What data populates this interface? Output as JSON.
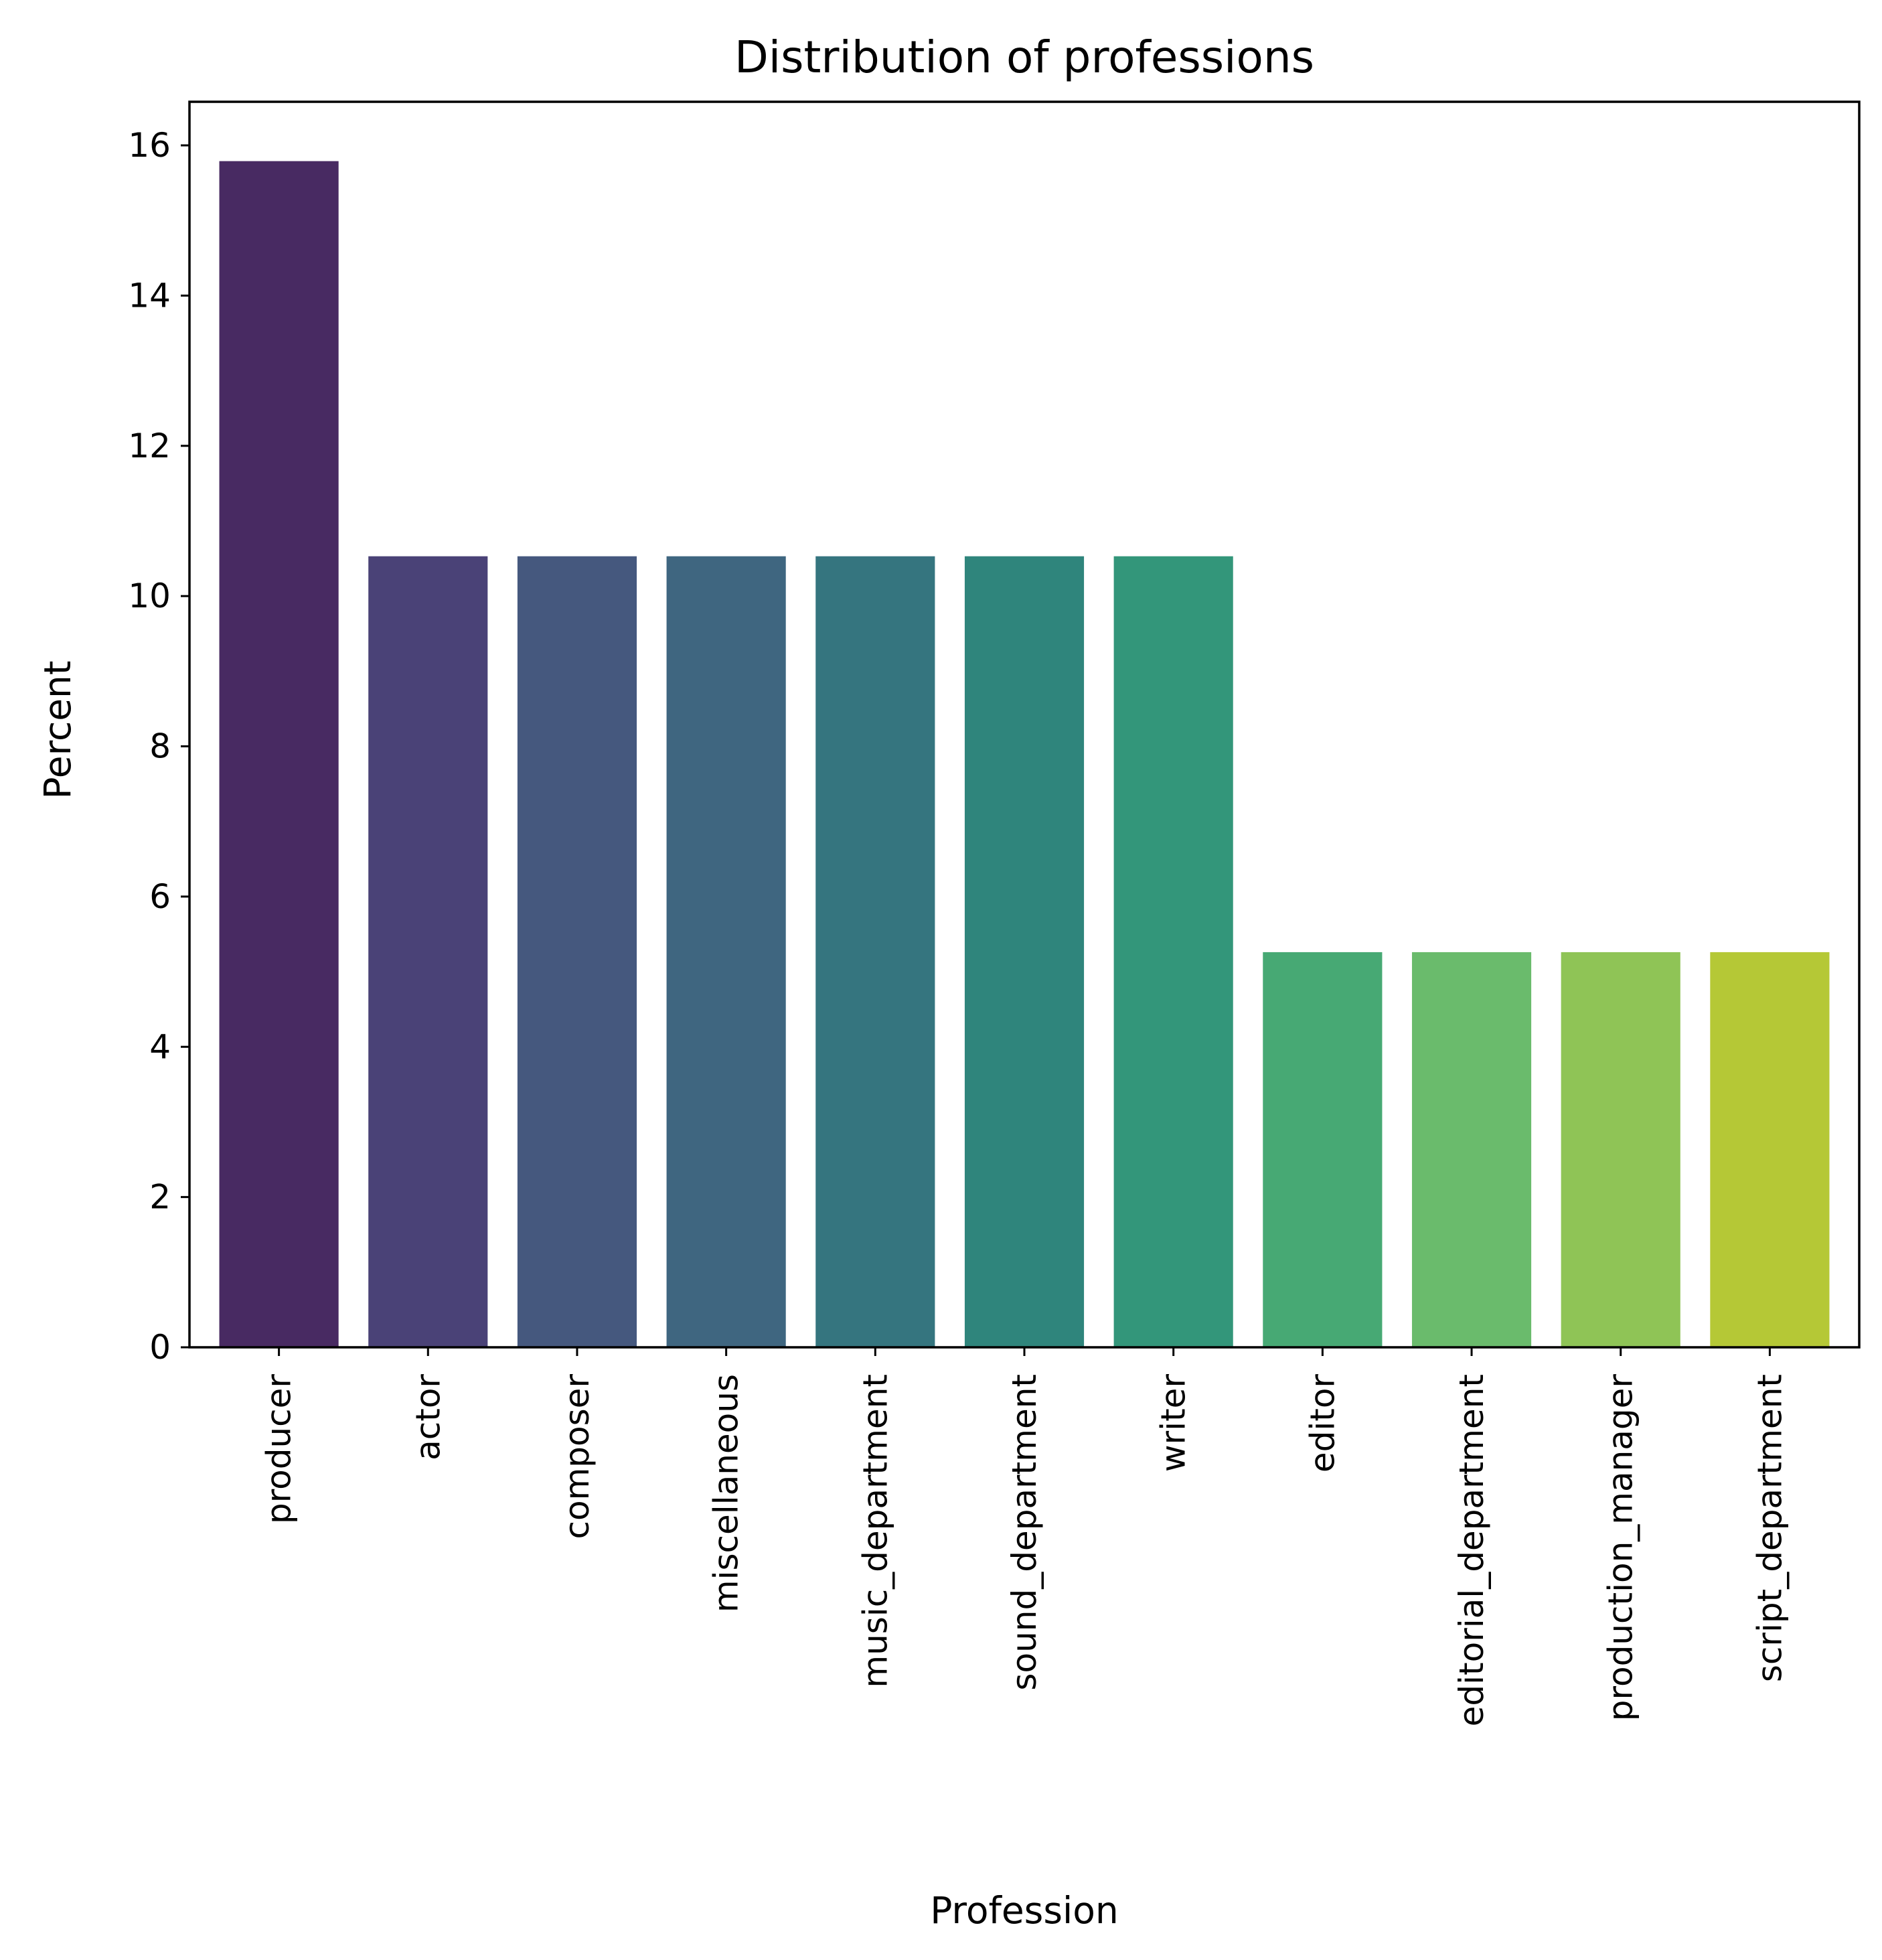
{
  "chart_data": {
    "type": "bar",
    "title": "Distribution of professions",
    "xlabel": "Profession",
    "ylabel": "Percent",
    "categories": [
      "producer",
      "actor",
      "composer",
      "miscellaneous",
      "music_department",
      "sound_department",
      "writer",
      "editor",
      "editorial_department",
      "production_manager",
      "script_department"
    ],
    "values": [
      15.79,
      10.53,
      10.53,
      10.53,
      10.53,
      10.53,
      10.53,
      5.26,
      5.26,
      5.26,
      5.26
    ],
    "ylim": [
      0,
      16.58
    ],
    "yticks": [
      0,
      2,
      4,
      6,
      8,
      10,
      12,
      14,
      16
    ],
    "grid": false,
    "legend": "none",
    "colors": [
      "#482A62",
      "#4A4277",
      "#45587E",
      "#3F6680",
      "#35757F",
      "#2F857C",
      "#33967A",
      "#47A974",
      "#6ABB6C",
      "#8FC456",
      "#B5C836"
    ]
  }
}
